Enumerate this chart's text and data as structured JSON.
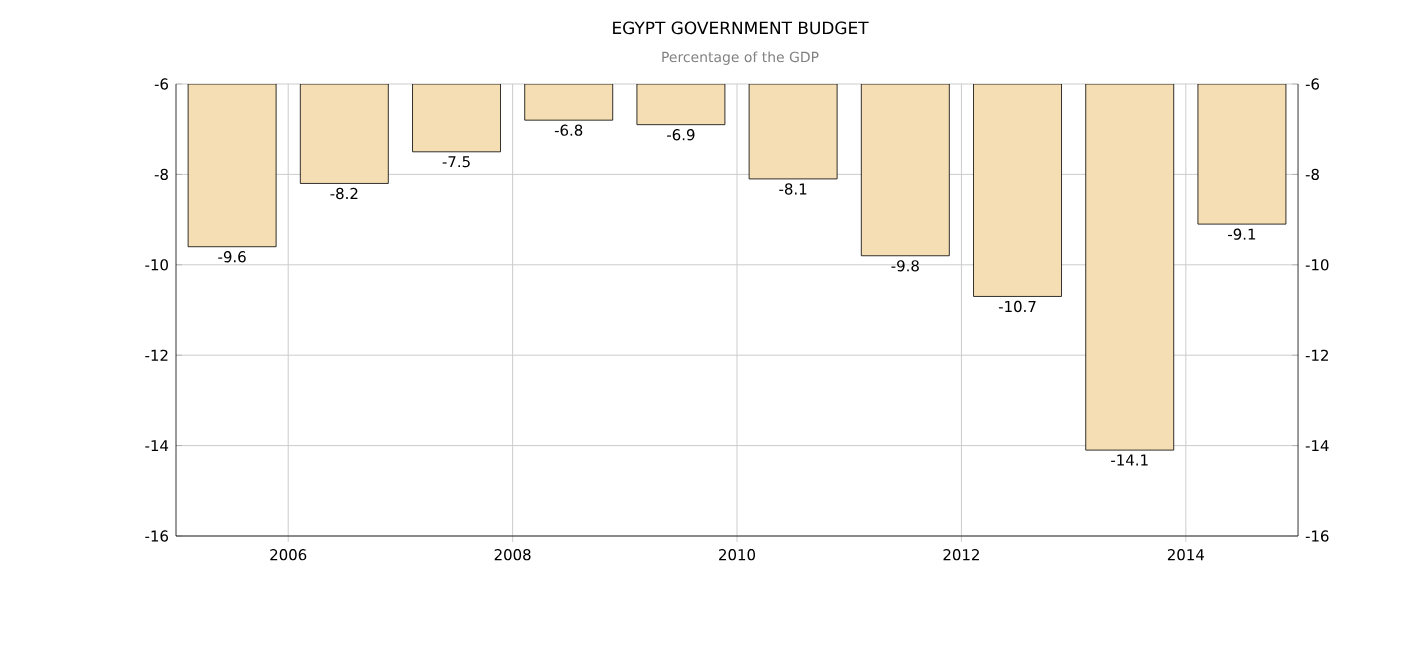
{
  "chart_data": {
    "type": "bar",
    "title": "EGYPT GOVERNMENT BUDGET",
    "subtitle": "Percentage of the GDP",
    "x": [
      2005.5,
      2006.5,
      2007.5,
      2008.5,
      2009.5,
      2010.5,
      2011.5,
      2012.5,
      2013.5,
      2014.5
    ],
    "values": [
      -9.6,
      -8.2,
      -7.5,
      -6.8,
      -6.9,
      -8.1,
      -9.8,
      -10.7,
      -14.1,
      -9.1
    ],
    "color": "#f5deb3",
    "data_labels": true,
    "xlim": [
      2005,
      2015
    ],
    "xticks": [
      2006,
      2008,
      2010,
      2012,
      2014
    ],
    "ylim": [
      -16,
      -6
    ],
    "yticks": [
      -16,
      -14,
      -12,
      -10,
      -8,
      -6
    ],
    "y2lim": [
      -16,
      -6
    ],
    "y2ticks": [
      -16,
      -14,
      -12,
      -10,
      -8,
      -6
    ],
    "grid": true
  }
}
